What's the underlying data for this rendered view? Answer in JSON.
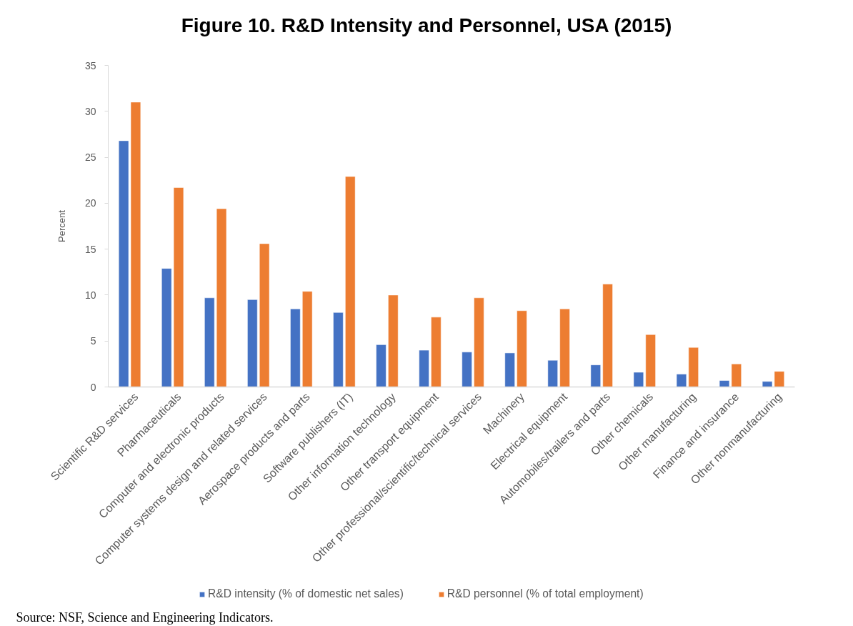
{
  "chart_data": {
    "type": "bar",
    "title": "Figure 10. R&D Intensity and Personnel, USA (2015)",
    "ylabel": "Percent",
    "categories": [
      "Scientific R&D services",
      "Pharmaceuticals",
      "Computer and electronic products",
      "Computer systems design and related services",
      "Aerospace products and parts",
      "Software publishers (IT)",
      "Other information technology",
      "Other transport equipment",
      "Other professional/scientific/technical services",
      "Machinery",
      "Electrical equipment",
      "Automobiles/trailers and parts",
      "Other chemicals",
      "Other manufacturing",
      "Finance and insurance",
      "Other nonmanufacturing"
    ],
    "series": [
      {
        "name": "R&D intensity (% of domestic net sales)",
        "color": "#4472c4",
        "values": [
          26.8,
          12.9,
          9.7,
          9.5,
          8.5,
          8.1,
          4.6,
          4.0,
          3.8,
          3.7,
          2.9,
          2.4,
          1.6,
          1.4,
          0.7,
          0.6
        ]
      },
      {
        "name": "R&D personnel (% of total employment)",
        "color": "#ed7d31",
        "values": [
          31.0,
          21.7,
          19.4,
          15.6,
          10.4,
          22.9,
          10.0,
          7.6,
          9.7,
          8.3,
          8.5,
          11.2,
          5.7,
          4.3,
          2.5,
          1.7
        ]
      }
    ],
    "ylim": [
      0,
      35
    ],
    "yticks": [
      0,
      5,
      10,
      15,
      20,
      25,
      30,
      35
    ],
    "grid": false,
    "legend": "bottom",
    "annotations": [
      "Source: NSF, Science and Engineering Indicators."
    ]
  }
}
